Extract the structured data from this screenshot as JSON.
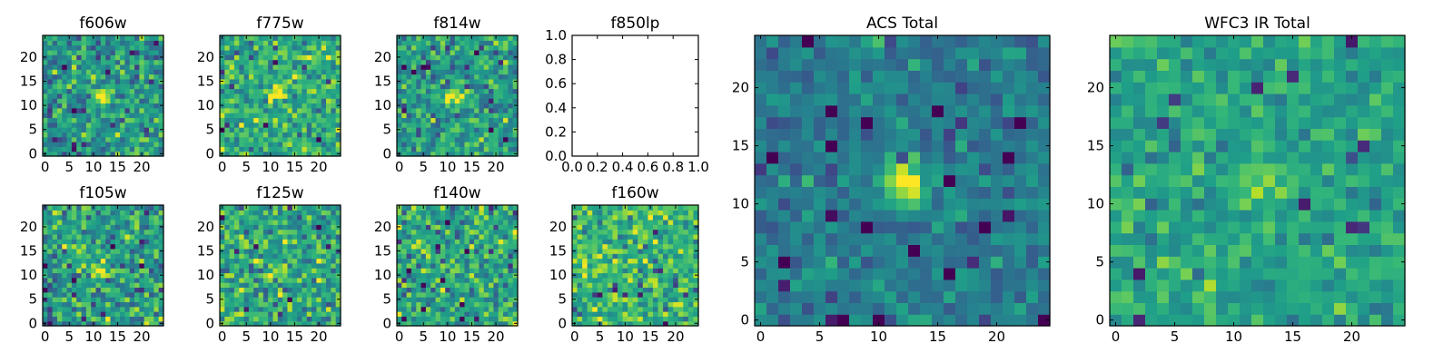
{
  "chart_data": [
    {
      "type": "heatmap",
      "title": "f606w",
      "xticks": [
        "0",
        "5",
        "10",
        "15",
        "20"
      ],
      "yticks": [
        "0",
        "5",
        "10",
        "15",
        "20"
      ],
      "xlim": [
        -0.5,
        24.5
      ],
      "ylim": [
        -0.5,
        24.5
      ],
      "grid_size": 25,
      "source_peak": [
        12,
        12
      ],
      "peak_strength": 0.55,
      "noise": 0.85,
      "mean_level": 0.52,
      "empty": false
    },
    {
      "type": "heatmap",
      "title": "f775w",
      "xticks": [
        "0",
        "5",
        "10",
        "15",
        "20"
      ],
      "yticks": [
        "0",
        "5",
        "10",
        "15",
        "20"
      ],
      "xlim": [
        -0.5,
        24.5
      ],
      "ylim": [
        -0.5,
        24.5
      ],
      "grid_size": 25,
      "source_peak": [
        12,
        12
      ],
      "peak_strength": 0.4,
      "noise": 0.85,
      "mean_level": 0.62,
      "empty": false
    },
    {
      "type": "heatmap",
      "title": "f814w",
      "xticks": [
        "0",
        "5",
        "10",
        "15",
        "20"
      ],
      "yticks": [
        "0",
        "5",
        "10",
        "15",
        "20"
      ],
      "xlim": [
        -0.5,
        24.5
      ],
      "ylim": [
        -0.5,
        24.5
      ],
      "grid_size": 25,
      "source_peak": [
        12,
        12
      ],
      "peak_strength": 0.45,
      "noise": 0.85,
      "mean_level": 0.55,
      "empty": false
    },
    {
      "type": "heatmap",
      "title": "f850lp",
      "xticks": [
        "0.0",
        "0.2",
        "0.4",
        "0.6",
        "0.8",
        "1.0"
      ],
      "yticks": [
        "0.0",
        "0.2",
        "0.4",
        "0.6",
        "0.8",
        "1.0"
      ],
      "xlim": [
        0,
        1
      ],
      "ylim": [
        0,
        1
      ],
      "grid_size": 0,
      "empty": true
    },
    {
      "type": "heatmap",
      "title": "f105w",
      "xticks": [
        "0",
        "5",
        "10",
        "15",
        "20"
      ],
      "yticks": [
        "0",
        "5",
        "10",
        "15",
        "20"
      ],
      "xlim": [
        -0.5,
        24.5
      ],
      "ylim": [
        -0.5,
        24.5
      ],
      "grid_size": 25,
      "source_peak": [
        12,
        11
      ],
      "peak_strength": 0.35,
      "noise": 0.9,
      "mean_level": 0.55,
      "empty": false
    },
    {
      "type": "heatmap",
      "title": "f125w",
      "xticks": [
        "0",
        "5",
        "10",
        "15",
        "20"
      ],
      "yticks": [
        "0",
        "5",
        "10",
        "15",
        "20"
      ],
      "xlim": [
        -0.5,
        24.5
      ],
      "ylim": [
        -0.5,
        24.5
      ],
      "grid_size": 25,
      "source_peak": [
        12,
        11
      ],
      "peak_strength": 0.2,
      "noise": 0.9,
      "mean_level": 0.6,
      "empty": false
    },
    {
      "type": "heatmap",
      "title": "f140w",
      "xticks": [
        "0",
        "5",
        "10",
        "15",
        "20"
      ],
      "yticks": [
        "0",
        "5",
        "10",
        "15",
        "20"
      ],
      "xlim": [
        -0.5,
        24.5
      ],
      "ylim": [
        -0.5,
        24.5
      ],
      "grid_size": 25,
      "source_peak": [
        12,
        11
      ],
      "peak_strength": 0.2,
      "noise": 0.9,
      "mean_level": 0.58,
      "empty": false
    },
    {
      "type": "heatmap",
      "title": "f160w",
      "xticks": [
        "0",
        "5",
        "10",
        "15",
        "20"
      ],
      "yticks": [
        "0",
        "5",
        "10",
        "15",
        "20"
      ],
      "xlim": [
        -0.5,
        24.5
      ],
      "ylim": [
        -0.5,
        24.5
      ],
      "grid_size": 25,
      "source_peak": [
        12,
        11
      ],
      "peak_strength": 0.2,
      "noise": 0.9,
      "mean_level": 0.66,
      "empty": false
    },
    {
      "type": "heatmap",
      "title": "ACS Total",
      "xticks": [
        "0",
        "5",
        "10",
        "15",
        "20"
      ],
      "yticks": [
        "0",
        "5",
        "10",
        "15",
        "20"
      ],
      "xlim": [
        -0.5,
        24.5
      ],
      "ylim": [
        -0.5,
        24.5
      ],
      "grid_size": 25,
      "source_peak": [
        12,
        12
      ],
      "peak_strength": 0.65,
      "noise": 0.5,
      "mean_level": 0.42,
      "empty": false
    },
    {
      "type": "heatmap",
      "title": "WFC3 IR Total",
      "xticks": [
        "0",
        "5",
        "10",
        "15",
        "20"
      ],
      "yticks": [
        "0",
        "5",
        "10",
        "15",
        "20"
      ],
      "xlim": [
        -0.5,
        24.5
      ],
      "ylim": [
        -0.5,
        24.5
      ],
      "grid_size": 25,
      "source_peak": [
        12,
        12
      ],
      "peak_strength": 0.35,
      "noise": 0.55,
      "mean_level": 0.58,
      "empty": false
    }
  ],
  "colors": {
    "colormap": "viridis",
    "axes": "#000000",
    "background": "#ffffff"
  }
}
